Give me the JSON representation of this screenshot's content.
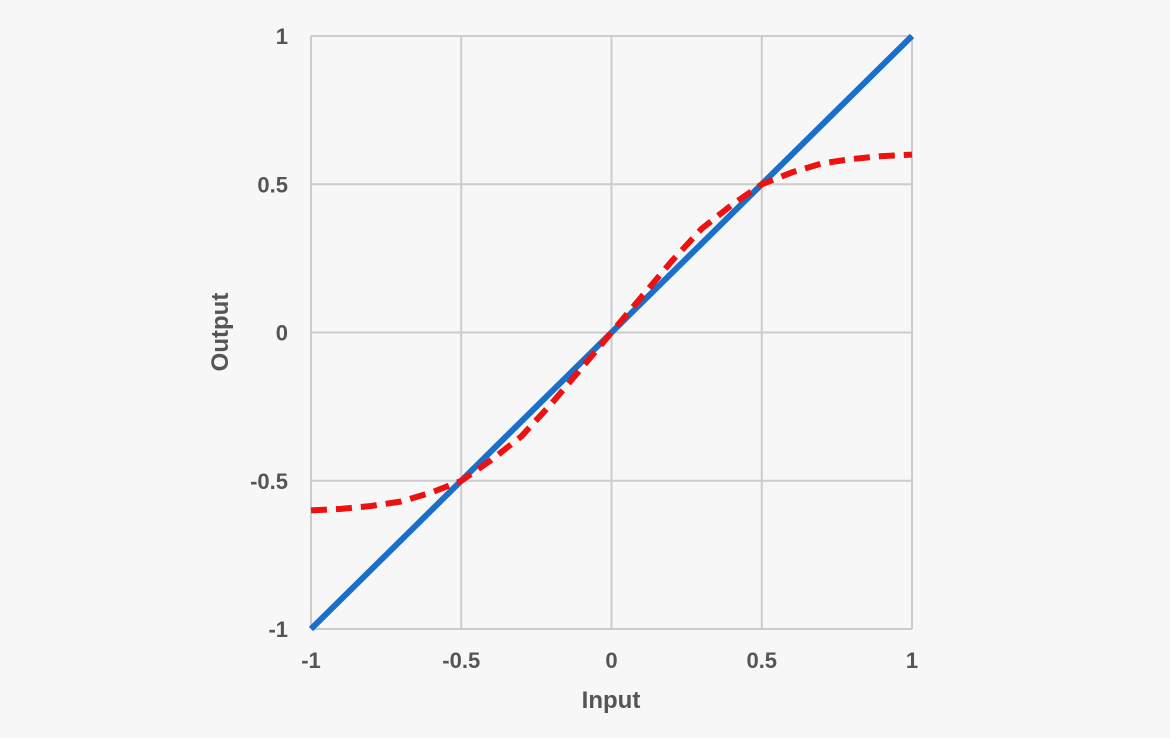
{
  "chart_data": {
    "type": "line",
    "xlabel": "Input",
    "ylabel": "Output",
    "xlim": [
      -1,
      1
    ],
    "ylim": [
      -1,
      1
    ],
    "xticks": [
      -1,
      -0.5,
      0,
      0.5,
      1
    ],
    "yticks": [
      -1,
      -0.5,
      0,
      0.5,
      1
    ],
    "x_tick_labels": [
      "-1",
      "-0.5",
      "0",
      "0.5",
      "1"
    ],
    "y_tick_labels": [
      "-1",
      "-0.5",
      "0",
      "0.5",
      "1"
    ],
    "grid": true,
    "series": [
      {
        "style": "solid",
        "color": "#1a6fc9",
        "x": [
          -1,
          1
        ],
        "y": [
          -1,
          1
        ]
      },
      {
        "style": "dashed",
        "color": "#ee1111",
        "x": [
          -1,
          -0.9,
          -0.8,
          -0.7,
          -0.6,
          -0.5,
          -0.4,
          -0.3,
          -0.2,
          -0.1,
          0,
          0.1,
          0.2,
          0.3,
          0.4,
          0.5,
          0.6,
          0.7,
          0.8,
          0.9,
          1
        ],
        "y": [
          -0.6,
          -0.595,
          -0.585,
          -0.57,
          -0.54,
          -0.5,
          -0.43,
          -0.35,
          -0.24,
          -0.12,
          0,
          0.12,
          0.24,
          0.35,
          0.43,
          0.5,
          0.54,
          0.57,
          0.585,
          0.595,
          0.6
        ]
      }
    ]
  }
}
